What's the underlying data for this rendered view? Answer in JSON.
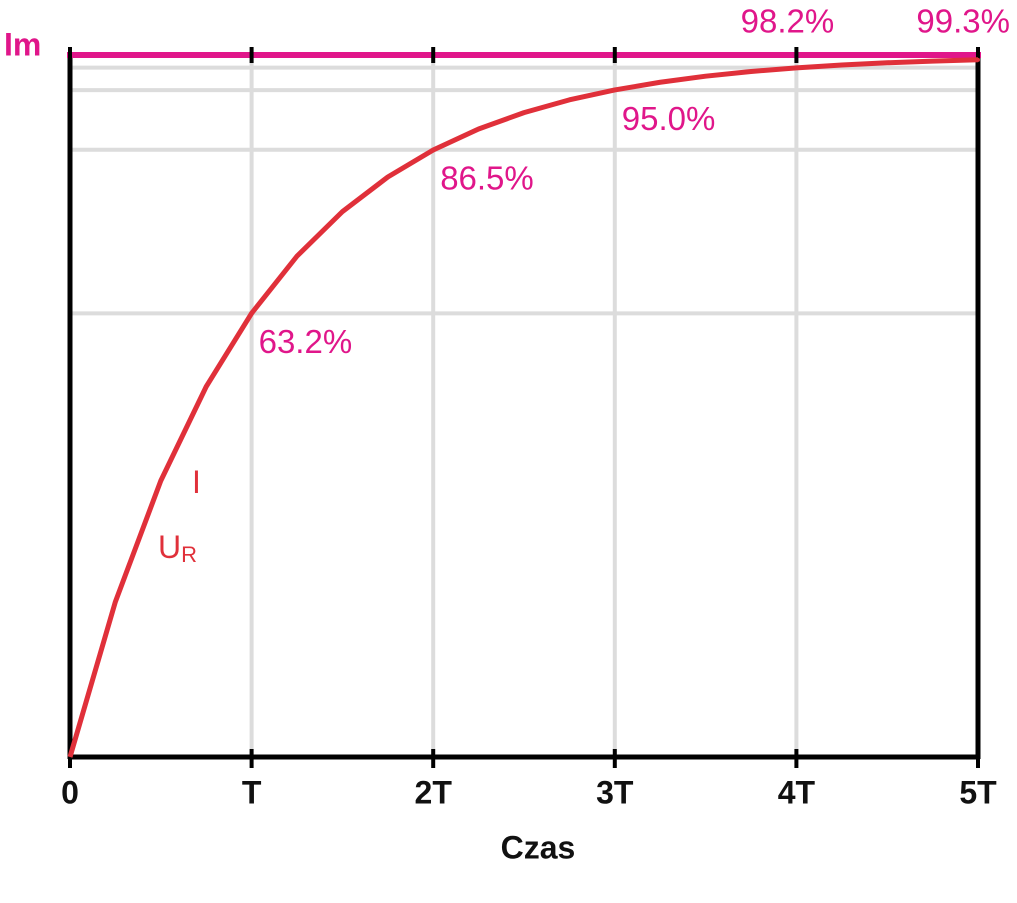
{
  "chart_data": {
    "type": "line",
    "x_label": "Czas",
    "x": [
      0,
      0.25,
      0.5,
      0.75,
      1,
      1.25,
      1.5,
      1.75,
      2,
      2.25,
      2.5,
      2.75,
      3,
      3.25,
      3.5,
      3.75,
      4,
      4.25,
      4.5,
      4.75,
      5
    ],
    "series": [
      {
        "color": "#e0303a",
        "values": [
          0,
          22.12,
          39.35,
          52.76,
          63.21,
          71.35,
          77.69,
          82.62,
          86.47,
          89.46,
          91.79,
          93.61,
          95.02,
          96.12,
          96.98,
          97.65,
          98.17,
          98.57,
          98.89,
          99.13,
          99.33
        ]
      }
    ],
    "points": {
      "x": [
        1,
        2,
        3,
        4,
        5
      ],
      "values": [
        63.2,
        86.5,
        95.0,
        98.2,
        99.3
      ],
      "value_labels": [
        "63.2%",
        "86.5%",
        "95.0%",
        "98.2%",
        "99.3%"
      ],
      "color": "#e0168a"
    },
    "curve_labels": [
      {
        "text": "I"
      },
      {
        "text": "U",
        "sub": "R"
      }
    ],
    "reference_line": {
      "value": 100,
      "label": "Im",
      "color": "#e0168a"
    },
    "xlim": [
      0,
      5
    ],
    "ylim": [
      0,
      100
    ],
    "xticks": [
      0,
      {
        "value": 1,
        "label": "T"
      },
      {
        "value": 2,
        "label": "2T"
      },
      {
        "value": 3,
        "label": "3T"
      },
      {
        "value": 4,
        "label": "4T"
      },
      {
        "value": 5,
        "label": "5T"
      }
    ],
    "ygrid": [
      63.2,
      86.5,
      95.0,
      98.2
    ],
    "grid": true
  }
}
